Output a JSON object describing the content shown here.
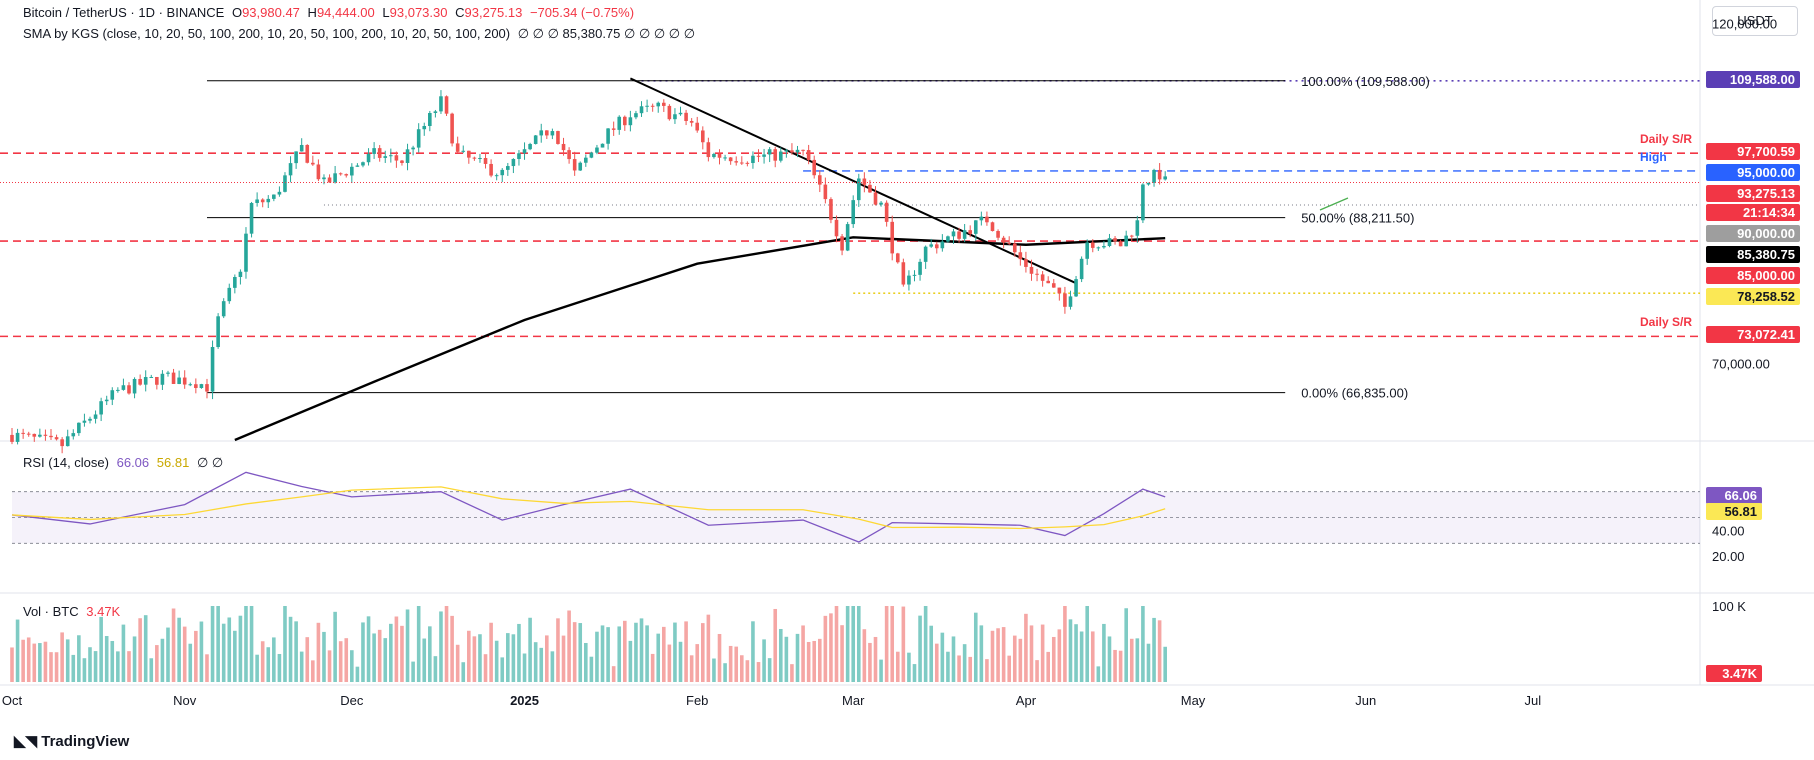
{
  "header": {
    "symbol": "Bitcoin / TetherUS · 1D · BINANCE",
    "o_label": "O",
    "o": "93,980.47",
    "h_label": "H",
    "h": "94,444.00",
    "l_label": "L",
    "l": "93,073.30",
    "c_label": "C",
    "c": "93,275.13",
    "change": "−705.34 (−0.75%)",
    "sma_label": "SMA by KGS (close, 10, 20, 50, 100, 200, 10, 20, 50, 100, 200, 10, 20, 50, 100, 200)",
    "sma_values": "∅ ∅ ∅ 85,380.75 ∅ ∅ ∅ ∅ ∅",
    "currency": "USDT"
  },
  "rsi_header": {
    "label": "RSI (14, close)",
    "rsi": "66.06",
    "ma": "56.81",
    "extra": "∅ ∅"
  },
  "vol_header": {
    "label": "Vol · BTC",
    "value": "3.47K"
  },
  "brand": "TradingView",
  "colors": {
    "up": "#26a69a",
    "down": "#ef5350",
    "sma": "#000000",
    "fib": "#000000",
    "sr_red": "#f23645",
    "high_blue": "#2962ff",
    "rsi_line": "#7e57c2",
    "rsi_ma": "#fdd835"
  },
  "chart_data": {
    "type": "candlestick",
    "symbol": "BTC/USDT",
    "timeframe": "1D",
    "y_axis": {
      "scale": "log",
      "range": [
        62000,
        123000
      ],
      "ticks": [
        {
          "value": 70000,
          "label": "70,000.00"
        },
        {
          "value": 120000,
          "label": "120,000.00"
        }
      ]
    },
    "x_axis": {
      "range": [
        "2024-10-01",
        "2025-07-31"
      ],
      "ticks": [
        {
          "date": "2024-10-01",
          "label": "Oct",
          "bold": false
        },
        {
          "date": "2024-11-01",
          "label": "Nov",
          "bold": false
        },
        {
          "date": "2024-12-01",
          "label": "Dec",
          "bold": false
        },
        {
          "date": "2025-01-01",
          "label": "2025",
          "bold": true
        },
        {
          "date": "2025-02-01",
          "label": "Feb",
          "bold": false
        },
        {
          "date": "2025-03-01",
          "label": "Mar",
          "bold": false
        },
        {
          "date": "2025-04-01",
          "label": "Apr",
          "bold": false
        },
        {
          "date": "2025-05-01",
          "label": "May",
          "bold": false
        },
        {
          "date": "2025-06-01",
          "label": "Jun",
          "bold": false
        },
        {
          "date": "2025-07-01",
          "label": "Jul",
          "bold": false
        }
      ]
    },
    "price_path": [
      [
        "2024-10-01",
        62500
      ],
      [
        "2024-10-10",
        61500
      ],
      [
        "2024-10-20",
        67000
      ],
      [
        "2024-10-28",
        68500
      ],
      [
        "2024-11-03",
        68000
      ],
      [
        "2024-11-05",
        67500
      ],
      [
        "2024-11-07",
        75000
      ],
      [
        "2024-11-11",
        81500
      ],
      [
        "2024-11-13",
        90000
      ],
      [
        "2024-11-17",
        91000
      ],
      [
        "2024-11-22",
        98500
      ],
      [
        "2024-11-26",
        93000
      ],
      [
        "2024-12-05",
        97500
      ],
      [
        "2024-12-10",
        96500
      ],
      [
        "2024-12-17",
        106000
      ],
      [
        "2024-12-20",
        97500
      ],
      [
        "2024-12-28",
        94500
      ],
      [
        "2025-01-06",
        102000
      ],
      [
        "2025-01-10",
        94500
      ],
      [
        "2025-01-15",
        100000
      ],
      [
        "2025-01-20",
        104000
      ],
      [
        "2025-01-25",
        105000
      ],
      [
        "2025-01-31",
        102500
      ],
      [
        "2025-02-03",
        97500
      ],
      [
        "2025-02-10",
        97000
      ],
      [
        "2025-02-20",
        97800
      ],
      [
        "2025-02-25",
        88500
      ],
      [
        "2025-02-27",
        84500
      ],
      [
        "2025-03-02",
        94000
      ],
      [
        "2025-03-06",
        90000
      ],
      [
        "2025-03-10",
        78500
      ],
      [
        "2025-03-14",
        84000
      ],
      [
        "2025-03-20",
        86000
      ],
      [
        "2025-03-25",
        88000
      ],
      [
        "2025-03-31",
        82500
      ],
      [
        "2025-04-06",
        78500
      ],
      [
        "2025-04-08",
        76500
      ],
      [
        "2025-04-12",
        85000
      ],
      [
        "2025-04-18",
        84500
      ],
      [
        "2025-04-21",
        87500
      ],
      [
        "2025-04-22",
        93500
      ],
      [
        "2025-04-25",
        94500
      ],
      [
        "2025-04-26",
        93275
      ]
    ],
    "sma_100_path": [
      [
        "2024-11-10",
        62000
      ],
      [
        "2024-12-05",
        68000
      ],
      [
        "2025-01-01",
        75000
      ],
      [
        "2025-02-01",
        82000
      ],
      [
        "2025-03-01",
        85500
      ],
      [
        "2025-04-01",
        84500
      ],
      [
        "2025-04-26",
        85380
      ]
    ],
    "last": {
      "price": 93275.13,
      "countdown": "21:14:34"
    },
    "fibonacci": [
      {
        "level": "100.00%",
        "value": 109588.0,
        "label": "100.00% (109,588.00)"
      },
      {
        "level": "50.00%",
        "value": 88211.5,
        "label": "50.00% (88,211.50)"
      },
      {
        "level": "0.00%",
        "value": 66835.0,
        "label": "0.00% (66,835.00)"
      }
    ],
    "fib_start_date": "2024-11-05",
    "fib_end_date": "2025-04-26",
    "levels": [
      {
        "value": 109588.0,
        "label": "109,588.00",
        "bg": "#5b3fb5",
        "line": "dotted-purple"
      },
      {
        "value": 97700.59,
        "label": "97,700.59",
        "bg": "#f23645",
        "line": "dashed-red",
        "tag": "Daily S/R"
      },
      {
        "value": 95000.0,
        "label": "95,000.00",
        "bg": "#2962ff",
        "line": "dashed-blue",
        "tag": "High"
      },
      {
        "value": 93275.13,
        "label": "93,275.13",
        "bg": "#f23645",
        "line": "dotted-red"
      },
      {
        "value": 90000.0,
        "label": "90,000.00",
        "bg": "#9e9e9e",
        "line": "dotted-gray"
      },
      {
        "value": 85380.75,
        "label": "85,380.75",
        "bg": "#000000",
        "line": "none"
      },
      {
        "value": 85000.0,
        "label": "85,000.00",
        "bg": "#f23645",
        "line": "dashed-red"
      },
      {
        "value": 78258.52,
        "label": "78,258.52",
        "bg": "#fbe855",
        "line": "dotted-yellow"
      },
      {
        "value": 73072.41,
        "label": "73,072.41",
        "bg": "#f23645",
        "line": "dashed-red",
        "tag": "Daily S/R"
      }
    ],
    "trendline": {
      "from": [
        "2025-01-20",
        110000
      ],
      "to": [
        "2025-04-10",
        79500
      ]
    },
    "rsi": {
      "ticks": [
        40,
        20
      ],
      "band": [
        30,
        70
      ],
      "current": 66.06,
      "ma": 56.81,
      "path": [
        [
          "2024-10-01",
          52
        ],
        [
          "2024-10-15",
          45
        ],
        [
          "2024-11-01",
          60
        ],
        [
          "2024-11-12",
          85
        ],
        [
          "2024-11-22",
          74
        ],
        [
          "2024-12-01",
          66
        ],
        [
          "2024-12-17",
          70
        ],
        [
          "2024-12-28",
          48
        ],
        [
          "2025-01-08",
          60
        ],
        [
          "2025-01-20",
          72
        ],
        [
          "2025-02-03",
          44
        ],
        [
          "2025-02-20",
          48
        ],
        [
          "2025-03-02",
          31
        ],
        [
          "2025-03-08",
          46
        ],
        [
          "2025-03-20",
          45
        ],
        [
          "2025-03-31",
          44
        ],
        [
          "2025-04-08",
          36
        ],
        [
          "2025-04-15",
          53
        ],
        [
          "2025-04-22",
          72
        ],
        [
          "2025-04-26",
          66
        ]
      ]
    },
    "volume": {
      "unit": "K BTC",
      "tick": {
        "value": 100,
        "label": "100 K"
      },
      "current": {
        "value": 3.47,
        "label": "3.47K"
      }
    }
  }
}
